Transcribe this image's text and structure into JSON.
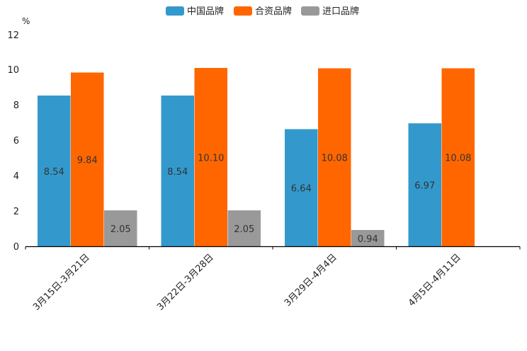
{
  "chart_data": {
    "type": "bar",
    "unit": "%",
    "categories": [
      "3月15日-3月21日",
      "3月22日-3月28日",
      "3月29日-4月4日",
      "4月5日-4月11日"
    ],
    "series": [
      {
        "name": "中国品牌",
        "color": "#3399cc",
        "values": [
          8.54,
          8.54,
          6.64,
          6.97
        ],
        "labels": [
          "8.54",
          "8.54",
          "6.64",
          "6.97"
        ]
      },
      {
        "name": "合资品牌",
        "color": "#ff6600",
        "values": [
          9.84,
          10.1,
          10.08,
          10.08
        ],
        "labels": [
          "9.84",
          "10.10",
          "10.08",
          "10.08"
        ]
      },
      {
        "name": "进口品牌",
        "color": "#999999",
        "values": [
          2.05,
          2.05,
          0.94,
          null
        ],
        "labels": [
          "2.05",
          "2.05",
          "0.94",
          null
        ]
      }
    ],
    "yticks": [
      "0",
      "2",
      "4",
      "6",
      "8",
      "10",
      "12"
    ],
    "ylim": [
      0,
      12
    ],
    "legend_position": "top-center"
  }
}
